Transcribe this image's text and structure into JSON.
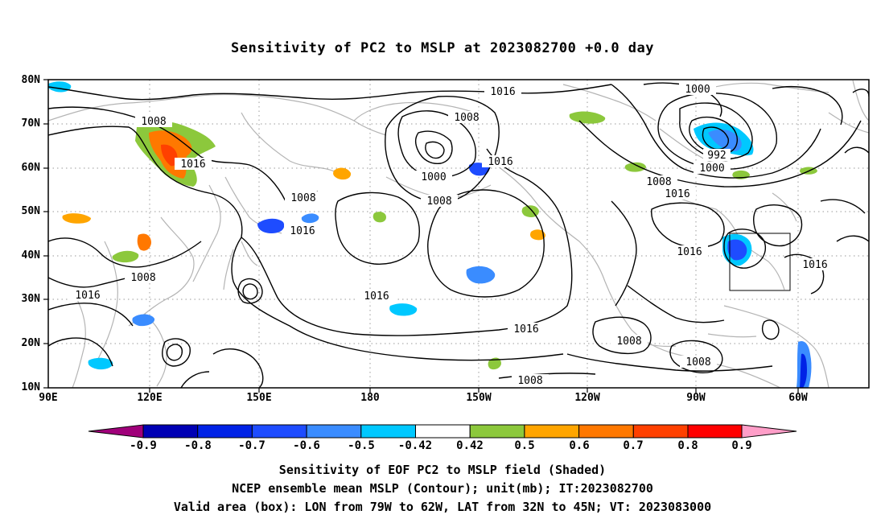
{
  "title": "Sensitivity of PC2 to MSLP at 2023082700 +0.0 day",
  "lat_labels": [
    "80N",
    "70N",
    "60N",
    "50N",
    "40N",
    "30N",
    "20N",
    "10N"
  ],
  "lon_labels": [
    "90E",
    "120E",
    "150E",
    "180",
    "150W",
    "120W",
    "90W",
    "60W"
  ],
  "contour_labels": {
    "c1016_top": "1016",
    "c1008_top": "1008",
    "c1000_top": "1000",
    "c992": "992",
    "c1000_low": "1000",
    "c1008_ne": "1008",
    "c1016_ne": "1016",
    "c1008_nw": "1008",
    "c1016_nw": "1016",
    "c1016_kam": "1016",
    "c1008_kur": "1008",
    "c1000_aleut": "1000",
    "c1008_aleut": "1008",
    "c1016_gulf": "1016",
    "c1016_atl": "1016",
    "c1016_east": "1016",
    "c1008_w": "1008",
    "c1016_w": "1016",
    "c1016_mid": "1016",
    "c1016_south": "1016",
    "c1008_south": "1008",
    "c1008_mex": "1008",
    "c1008_car": "1008"
  },
  "colorbar": {
    "labels": [
      "-0.9",
      "-0.8",
      "-0.7",
      "-0.6",
      "-0.5",
      "-0.42",
      "0.42",
      "0.5",
      "0.6",
      "0.7",
      "0.8",
      "0.9"
    ],
    "colors": [
      "#a0007a",
      "#0000b4",
      "#0022e6",
      "#1e4cff",
      "#3a8cff",
      "#00c8ff",
      "#ffffff",
      "#8cc83c",
      "#ffa500",
      "#ff7800",
      "#ff4000",
      "#ff0000",
      "#ff9ec8"
    ]
  },
  "captions": [
    "Sensitivity of EOF PC2 to MSLP field (Shaded)",
    "NCEP ensemble mean MSLP (Contour); unit(mb); IT:2023082700",
    "Valid area (box): LON from 79W to 62W, LAT from 32N to 45N; VT: 2023083000"
  ]
}
